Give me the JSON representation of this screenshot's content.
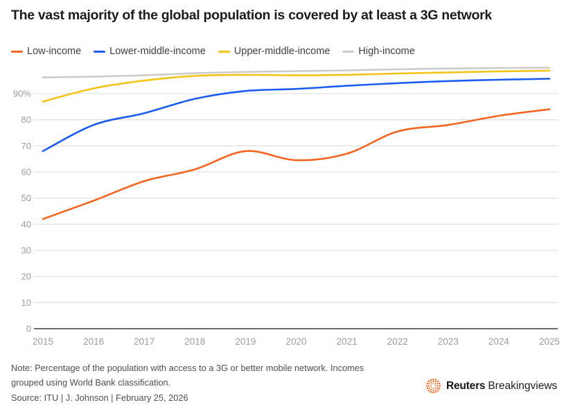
{
  "header": {
    "title": "The vast majority of the global population is covered by at least a 3G network"
  },
  "chart_data": {
    "type": "line",
    "title": "The vast majority of the global population is covered by at least a 3G network",
    "x": [
      2015,
      2016,
      2017,
      2018,
      2019,
      2020,
      2021,
      2022,
      2023,
      2024,
      2025
    ],
    "series": [
      {
        "name": "Low-income",
        "color": "#F5641E",
        "values": [
          42,
          49,
          56.5,
          61,
          68,
          64.5,
          67,
          75.5,
          78,
          81.5,
          84
        ]
      },
      {
        "name": "Lower-middle-income",
        "color": "#1C5BF2",
        "values": [
          68,
          78,
          82.5,
          88,
          91,
          91.8,
          93,
          94,
          94.8,
          95.3,
          95.7
        ]
      },
      {
        "name": "Upper-middle-income",
        "color": "#F3C317",
        "values": [
          87,
          92,
          95,
          96.8,
          97.2,
          97,
          97.2,
          97.7,
          98.1,
          98.5,
          98.8
        ]
      },
      {
        "name": "High-income",
        "color": "#CCCCCC",
        "values": [
          96.2,
          96.5,
          97,
          97.8,
          98.3,
          98.6,
          98.9,
          99.3,
          99.6,
          99.8,
          99.9
        ]
      }
    ],
    "xlabel": "",
    "ylabel": "",
    "ylim": [
      0,
      100
    ],
    "y_ticks": [
      0,
      10,
      20,
      30,
      40,
      50,
      60,
      70,
      80,
      90
    ],
    "y_tick_labels": [
      "0",
      "10",
      "20",
      "30",
      "40",
      "50",
      "60",
      "70",
      "80",
      "90%"
    ],
    "grid": true,
    "legend_position": "top",
    "gridline_color": "#DBDBDB",
    "axis_line_color": "#3C3C3C",
    "tick_label_color": "#9C9C9C"
  },
  "footer": {
    "note": "Note: Percentage of the population with access to a 3G or better mobile network. Incomes grouped using World Bank classification.",
    "source": "Source: ITU | J. Johnson | February 25, 2026",
    "brand_bold": "Reuters",
    "brand_regular": "Breakingviews",
    "logo_color": "#F5641E"
  }
}
